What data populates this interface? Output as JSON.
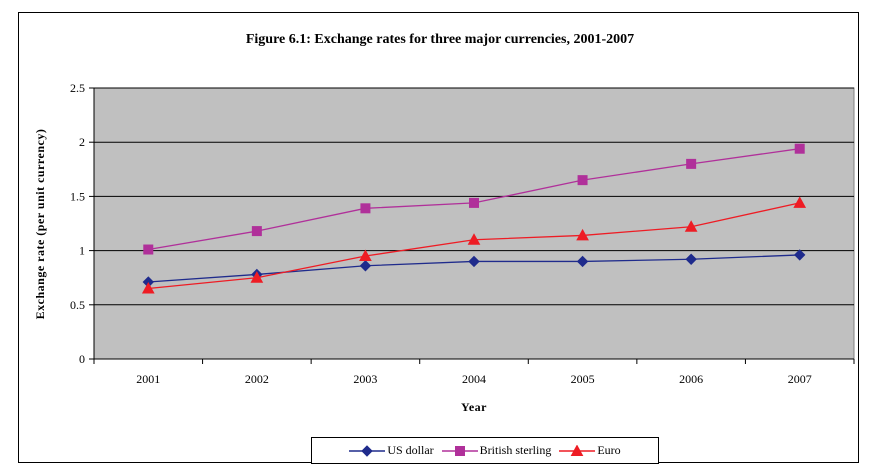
{
  "chart_data": {
    "type": "line",
    "title": "Figure 6.1: Exchange rates for three major currencies, 2001-2007",
    "xlabel": "Year",
    "ylabel": "Exchange rate (per unit currency)",
    "x": [
      "2001",
      "2002",
      "2003",
      "2004",
      "2005",
      "2006",
      "2007"
    ],
    "ylim": [
      0,
      2.5
    ],
    "yticks": [
      "0",
      "0.5",
      "1",
      "1.5",
      "2",
      "2.5"
    ],
    "grid": true,
    "legend_position": "bottom",
    "plot_background": "#C0C0C0",
    "series": [
      {
        "name": "US dollar",
        "color": "#1F2B8C",
        "marker": "diamond",
        "values": [
          0.71,
          0.78,
          0.86,
          0.9,
          0.9,
          0.92,
          0.96
        ]
      },
      {
        "name": "British sterling",
        "color": "#B0309A",
        "marker": "square",
        "values": [
          1.01,
          1.18,
          1.39,
          1.44,
          1.65,
          1.8,
          1.94
        ]
      },
      {
        "name": "Euro",
        "color": "#EE1C24",
        "marker": "triangle",
        "values": [
          0.65,
          0.75,
          0.95,
          1.1,
          1.14,
          1.22,
          1.44
        ]
      }
    ]
  }
}
